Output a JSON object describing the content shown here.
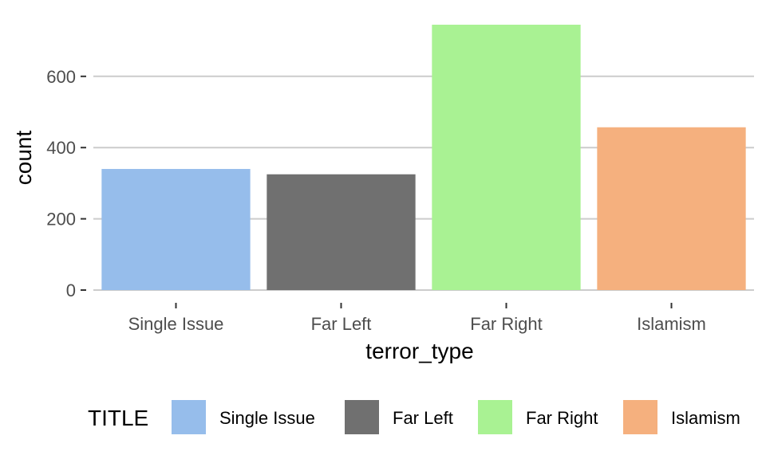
{
  "chart_data": {
    "type": "bar",
    "categories": [
      "Single Issue",
      "Far Left",
      "Far Right",
      "Islamism"
    ],
    "values": [
      340,
      325,
      745,
      457
    ],
    "colors": [
      "#96bdeb",
      "#707070",
      "#a9f293",
      "#f5b07e"
    ],
    "xlabel": "terror_type",
    "ylabel": "count",
    "ylim": [
      0,
      745
    ],
    "yticks": [
      0,
      200,
      400,
      600
    ],
    "grid": true,
    "legend": {
      "position": "bottom",
      "title": "TITLE",
      "entries": [
        "Single Issue",
        "Far Left",
        "Far Right",
        "Islamism"
      ]
    }
  }
}
